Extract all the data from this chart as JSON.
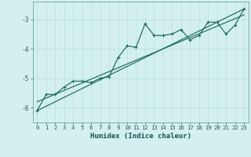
{
  "xlabel": "Humidex (Indice chaleur)",
  "background_color": "#d4efef",
  "line_color": "#1a6b5a",
  "xlim": [
    -0.5,
    23.5
  ],
  "ylim": [
    -6.5,
    -2.4
  ],
  "xticks": [
    0,
    1,
    2,
    3,
    4,
    5,
    6,
    7,
    8,
    9,
    10,
    11,
    12,
    13,
    14,
    15,
    16,
    17,
    18,
    19,
    20,
    21,
    22,
    23
  ],
  "yticks": [
    -6,
    -5,
    -4,
    -3
  ],
  "scatter_x": [
    0,
    1,
    2,
    3,
    4,
    5,
    6,
    7,
    8,
    9,
    10,
    11,
    12,
    13,
    14,
    15,
    16,
    17,
    18,
    19,
    20,
    21,
    22,
    23
  ],
  "scatter_y": [
    -6.1,
    -5.55,
    -5.55,
    -5.3,
    -5.1,
    -5.1,
    -5.15,
    -5.0,
    -4.95,
    -4.3,
    -3.9,
    -3.95,
    -3.15,
    -3.55,
    -3.55,
    -3.5,
    -3.35,
    -3.7,
    -3.55,
    -3.1,
    -3.1,
    -3.5,
    -3.2,
    -2.65
  ],
  "line1_x": [
    0,
    23
  ],
  "line1_y": [
    -6.1,
    -2.65
  ],
  "line2_x": [
    0,
    23
  ],
  "line2_y": [
    -5.8,
    -2.85
  ],
  "grid_color": "#b8dede",
  "marker_size": 2.5,
  "tick_fontsize": 5.2,
  "xlabel_fontsize": 6.5
}
